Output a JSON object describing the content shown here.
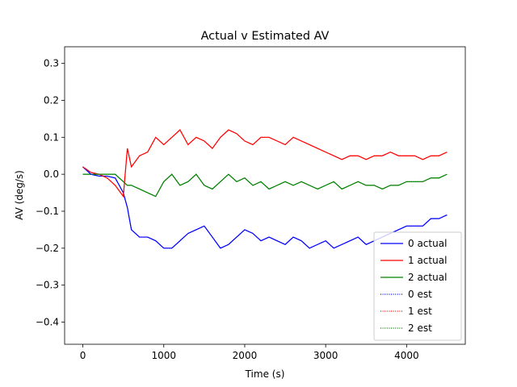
{
  "chart_data": {
    "type": "line",
    "title": "Actual v Estimated AV",
    "xlabel": "Time (s)",
    "ylabel": "AV (deg/s)",
    "xlim": [
      -225,
      4725
    ],
    "ylim": [
      -0.46,
      0.345
    ],
    "xticks": [
      0,
      1000,
      2000,
      3000,
      4000
    ],
    "yticks": [
      -0.4,
      -0.3,
      -0.2,
      -0.1,
      0.0,
      0.1,
      0.2,
      0.3
    ],
    "xtick_labels": [
      "0",
      "1000",
      "2000",
      "3000",
      "4000"
    ],
    "ytick_labels": [
      "−0.4",
      "−0.3",
      "−0.2",
      "−0.1",
      "0.0",
      "0.1",
      "0.2",
      "0.3"
    ],
    "legend_position": "lower right",
    "grid": false,
    "series": [
      {
        "name": "0 actual",
        "color": "#0000ff",
        "linestyle": "solid",
        "x": [
          0,
          100,
          200,
          300,
          400,
          500,
          550,
          600,
          700,
          800,
          900,
          1000,
          1100,
          1200,
          1300,
          1400,
          1500,
          1600,
          1700,
          1800,
          1900,
          2000,
          2100,
          2200,
          2300,
          2400,
          2500,
          2600,
          2700,
          2800,
          2900,
          3000,
          3100,
          3200,
          3300,
          3400,
          3500,
          3600,
          3700,
          3800,
          3900,
          4000,
          4100,
          4200,
          4300,
          4400,
          4500
        ],
        "y": [
          0.02,
          0.0,
          -0.005,
          -0.005,
          -0.01,
          -0.05,
          -0.09,
          -0.15,
          -0.17,
          -0.17,
          -0.18,
          -0.2,
          -0.2,
          -0.18,
          -0.16,
          -0.15,
          -0.14,
          -0.17,
          -0.2,
          -0.19,
          -0.17,
          -0.15,
          -0.16,
          -0.18,
          -0.17,
          -0.18,
          -0.19,
          -0.17,
          -0.18,
          -0.2,
          -0.19,
          -0.18,
          -0.2,
          -0.19,
          -0.18,
          -0.17,
          -0.19,
          -0.18,
          -0.17,
          -0.16,
          -0.15,
          -0.14,
          -0.14,
          -0.14,
          -0.12,
          -0.12,
          -0.11
        ]
      },
      {
        "name": "1 actual",
        "color": "#ff0000",
        "linestyle": "solid",
        "x": [
          0,
          100,
          200,
          300,
          400,
          500,
          550,
          600,
          700,
          800,
          900,
          1000,
          1100,
          1200,
          1300,
          1400,
          1500,
          1600,
          1700,
          1800,
          1900,
          2000,
          2100,
          2200,
          2300,
          2400,
          2500,
          2600,
          2700,
          2800,
          2900,
          3000,
          3100,
          3200,
          3300,
          3400,
          3500,
          3600,
          3700,
          3800,
          3900,
          4000,
          4100,
          4200,
          4300,
          4400,
          4500
        ],
        "y": [
          0.02,
          0.005,
          0.0,
          -0.01,
          -0.03,
          -0.06,
          0.07,
          0.02,
          0.05,
          0.06,
          0.1,
          0.08,
          0.1,
          0.12,
          0.08,
          0.1,
          0.09,
          0.07,
          0.1,
          0.12,
          0.11,
          0.09,
          0.08,
          0.1,
          0.1,
          0.09,
          0.08,
          0.1,
          0.09,
          0.08,
          0.07,
          0.06,
          0.05,
          0.04,
          0.05,
          0.05,
          0.04,
          0.05,
          0.05,
          0.06,
          0.05,
          0.05,
          0.05,
          0.04,
          0.05,
          0.05,
          0.06
        ]
      },
      {
        "name": "2 actual",
        "color": "#008000",
        "linestyle": "solid",
        "x": [
          0,
          100,
          200,
          300,
          400,
          500,
          550,
          600,
          700,
          800,
          900,
          1000,
          1100,
          1200,
          1300,
          1400,
          1500,
          1600,
          1700,
          1800,
          1900,
          2000,
          2100,
          2200,
          2300,
          2400,
          2500,
          2600,
          2700,
          2800,
          2900,
          3000,
          3100,
          3200,
          3300,
          3400,
          3500,
          3600,
          3700,
          3800,
          3900,
          4000,
          4100,
          4200,
          4300,
          4400,
          4500
        ],
        "y": [
          0.0,
          0.0,
          0.0,
          0.0,
          0.0,
          -0.02,
          -0.03,
          -0.03,
          -0.04,
          -0.05,
          -0.06,
          -0.02,
          0.0,
          -0.03,
          -0.02,
          0.0,
          -0.03,
          -0.04,
          -0.02,
          0.0,
          -0.02,
          -0.01,
          -0.03,
          -0.02,
          -0.04,
          -0.03,
          -0.02,
          -0.03,
          -0.02,
          -0.03,
          -0.04,
          -0.03,
          -0.02,
          -0.04,
          -0.03,
          -0.02,
          -0.03,
          -0.03,
          -0.04,
          -0.03,
          -0.03,
          -0.02,
          -0.02,
          -0.02,
          -0.01,
          -0.01,
          0.0
        ]
      },
      {
        "name": "0 est",
        "color": "#0000ff",
        "linestyle": "dotted",
        "x": [
          0,
          100,
          200,
          300,
          400,
          500,
          550,
          600,
          700,
          800,
          900,
          1000,
          1100,
          1200,
          1300,
          1400,
          1500,
          1600,
          1700,
          1800,
          1900,
          2000,
          2100,
          2200,
          2300,
          2400,
          2500,
          2600,
          2700,
          2800,
          2900,
          3000,
          3100,
          3200,
          3300,
          3400,
          3500,
          3600,
          3700,
          3800,
          3900,
          4000,
          4100,
          4200,
          4300,
          4400,
          4500
        ],
        "y": [
          0.02,
          0.0,
          -0.005,
          -0.005,
          -0.01,
          -0.05,
          -0.09,
          -0.15,
          -0.17,
          -0.17,
          -0.18,
          -0.2,
          -0.2,
          -0.18,
          -0.16,
          -0.15,
          -0.14,
          -0.17,
          -0.2,
          -0.19,
          -0.17,
          -0.15,
          -0.16,
          -0.18,
          -0.17,
          -0.18,
          -0.19,
          -0.17,
          -0.18,
          -0.2,
          -0.19,
          -0.18,
          -0.2,
          -0.19,
          -0.18,
          -0.17,
          -0.19,
          -0.18,
          -0.17,
          -0.16,
          -0.15,
          -0.14,
          -0.14,
          -0.14,
          -0.12,
          -0.12,
          -0.11
        ]
      },
      {
        "name": "1 est",
        "color": "#ff0000",
        "linestyle": "dotted",
        "x": [
          0,
          100,
          200,
          300,
          400,
          500,
          550,
          600,
          700,
          800,
          900,
          1000,
          1100,
          1200,
          1300,
          1400,
          1500,
          1600,
          1700,
          1800,
          1900,
          2000,
          2100,
          2200,
          2300,
          2400,
          2500,
          2600,
          2700,
          2800,
          2900,
          3000,
          3100,
          3200,
          3300,
          3400,
          3500,
          3600,
          3700,
          3800,
          3900,
          4000,
          4100,
          4200,
          4300,
          4400,
          4500
        ],
        "y": [
          0.02,
          0.005,
          0.0,
          -0.01,
          -0.03,
          -0.06,
          0.07,
          0.02,
          0.05,
          0.06,
          0.1,
          0.08,
          0.1,
          0.12,
          0.08,
          0.1,
          0.09,
          0.07,
          0.1,
          0.12,
          0.11,
          0.09,
          0.08,
          0.1,
          0.1,
          0.09,
          0.08,
          0.1,
          0.09,
          0.08,
          0.07,
          0.06,
          0.05,
          0.04,
          0.05,
          0.05,
          0.04,
          0.05,
          0.05,
          0.06,
          0.05,
          0.05,
          0.05,
          0.04,
          0.05,
          0.05,
          0.06
        ]
      },
      {
        "name": "2 est",
        "color": "#008000",
        "linestyle": "dotted",
        "x": [
          0,
          100,
          200,
          300,
          400,
          500,
          550,
          600,
          700,
          800,
          900,
          1000,
          1100,
          1200,
          1300,
          1400,
          1500,
          1600,
          1700,
          1800,
          1900,
          2000,
          2100,
          2200,
          2300,
          2400,
          2500,
          2600,
          2700,
          2800,
          2900,
          3000,
          3100,
          3200,
          3300,
          3400,
          3500,
          3600,
          3700,
          3800,
          3900,
          4000,
          4100,
          4200,
          4300,
          4400,
          4500
        ],
        "y": [
          0.0,
          0.0,
          0.0,
          0.0,
          0.0,
          -0.02,
          -0.03,
          -0.03,
          -0.04,
          -0.05,
          -0.06,
          -0.02,
          0.0,
          -0.03,
          -0.02,
          0.0,
          -0.03,
          -0.04,
          -0.02,
          0.0,
          -0.02,
          -0.01,
          -0.03,
          -0.02,
          -0.04,
          -0.03,
          -0.02,
          -0.03,
          -0.02,
          -0.03,
          -0.04,
          -0.03,
          -0.02,
          -0.04,
          -0.03,
          -0.02,
          -0.03,
          -0.03,
          -0.04,
          -0.03,
          -0.03,
          -0.02,
          -0.02,
          -0.02,
          -0.01,
          -0.01,
          0.0
        ]
      }
    ]
  }
}
